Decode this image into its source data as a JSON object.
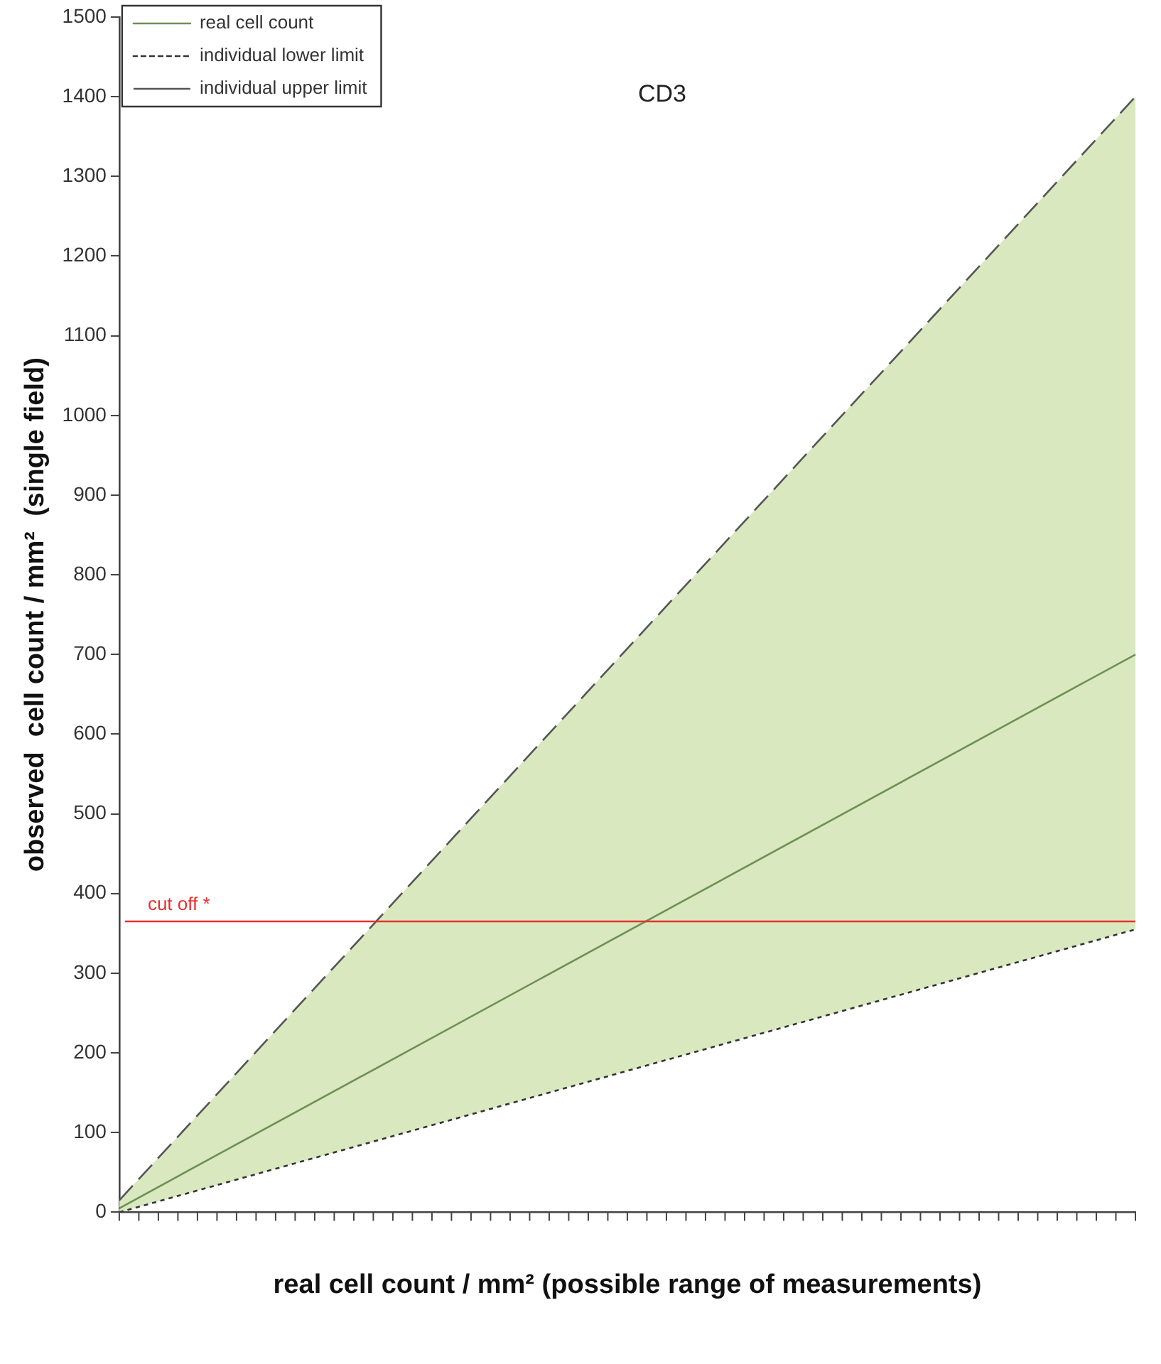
{
  "chart_data": {
    "type": "line",
    "categories": [
      null,
      null
    ],
    "xlabel": "real cell count / mm² (possible range of measurements)",
    "ylabel": "observed  cell count / mm²  (single field)",
    "series": [
      {
        "name": "real cell count",
        "color": "#6f8f55",
        "values": [
          5,
          700
        ],
        "lower": [
          0,
          355
        ],
        "upper": [
          15,
          1400
        ],
        "line_style": "solid"
      },
      {
        "name": "individual lower limit",
        "color": "#333333",
        "values": [
          0,
          355
        ],
        "line_style": "dotted"
      },
      {
        "name": "individual upper limit",
        "color": "#555555",
        "values": [
          15,
          1400
        ],
        "line_style": "dashed"
      }
    ],
    "ylim": [
      0,
      1500
    ],
    "yticks": [
      0,
      100,
      200,
      300,
      400,
      500,
      600,
      700,
      800,
      900,
      1000,
      1100,
      1200,
      1300,
      1400,
      1500
    ],
    "tick_labels": "y",
    "grid": false,
    "legend": "top left",
    "marker": "none",
    "ref_lines": [
      {
        "axis": "y",
        "value": 365,
        "label": "cut off *",
        "color": "#e8312f"
      }
    ],
    "annotations": [
      "CD3"
    ]
  }
}
